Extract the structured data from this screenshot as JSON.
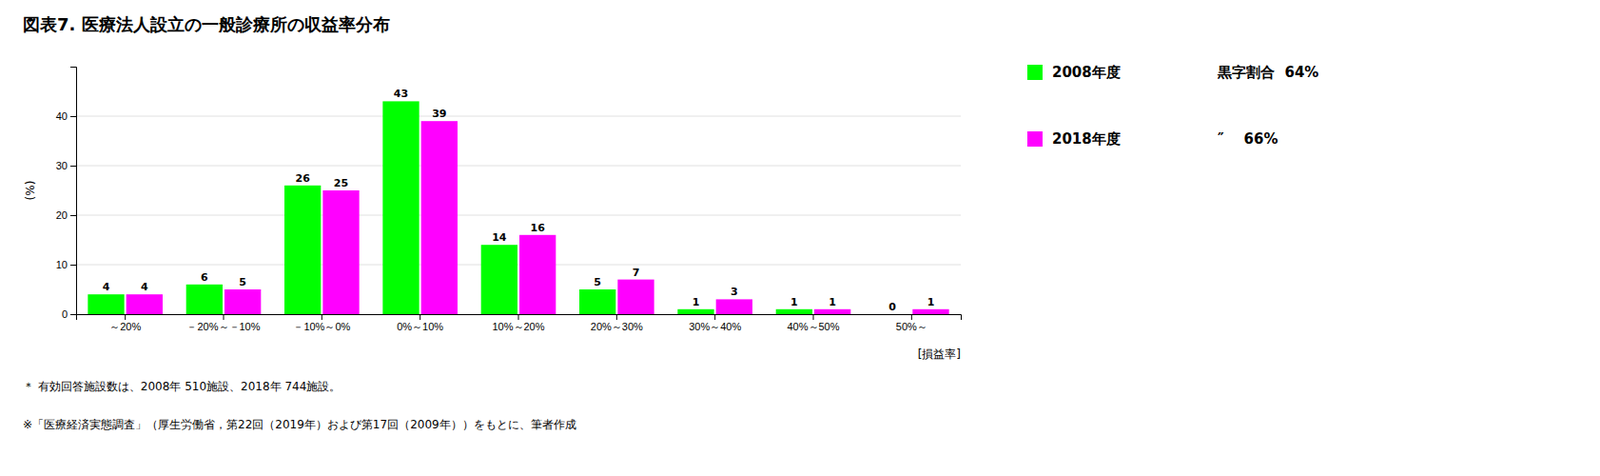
{
  "chart_data": {
    "type": "bar",
    "title": "図表7.  医療法人設立の一般診療所の収益率分布",
    "categories": [
      "～20%",
      "－20%～－10%",
      "－10%～0%",
      "0%～10%",
      "10%～20%",
      "20%～30%",
      "30%～40%",
      "40%～50%",
      "50%～"
    ],
    "series": [
      {
        "name": "2008年度",
        "color": "#00FF00",
        "values": [
          4,
          6,
          26,
          43,
          14,
          5,
          1,
          1,
          0
        ]
      },
      {
        "name": "2018年度",
        "color": "#FF00FF",
        "values": [
          4,
          5,
          25,
          39,
          16,
          7,
          3,
          1,
          1
        ]
      }
    ],
    "ylabel": "(%)",
    "xlabel": "[損益率]",
    "ylim": [
      0,
      50
    ],
    "yticks": [
      0,
      10,
      20,
      30,
      40
    ],
    "grid": true,
    "data_labels": true,
    "legend": "right",
    "annotations": [
      "黒字割合  64%",
      "″    66%",
      "＊ 有効回答施設数は、2008年 510施設、2018年 744施設。",
      "※「医療経済実態調査」（厚生労働省，第22回（2019年）および第17回（2009年））をもとに、筆者作成"
    ]
  }
}
